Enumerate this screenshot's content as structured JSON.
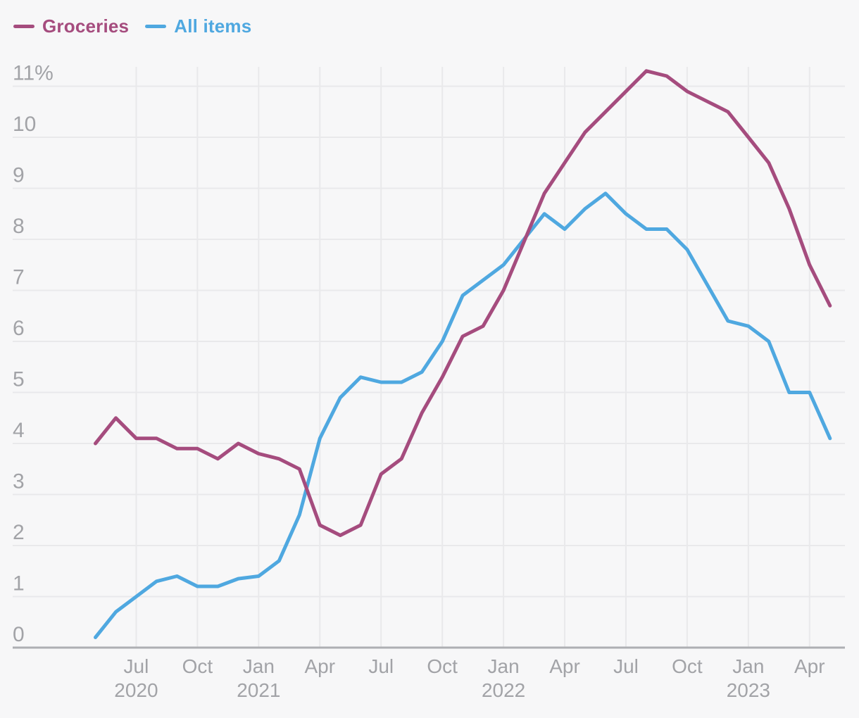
{
  "legend": {
    "items": [
      {
        "label": "Groceries"
      },
      {
        "label": "All items"
      }
    ]
  },
  "chart_data": {
    "type": "line",
    "title": "",
    "xlabel": "",
    "ylabel": "",
    "ylim": [
      0,
      11
    ],
    "grid": true,
    "legend_position": "top-left",
    "x": [
      "May 2020",
      "Jun 2020",
      "Jul 2020",
      "Aug 2020",
      "Sep 2020",
      "Oct 2020",
      "Nov 2020",
      "Dec 2020",
      "Jan 2021",
      "Feb 2021",
      "Mar 2021",
      "Apr 2021",
      "May 2021",
      "Jun 2021",
      "Jul 2021",
      "Aug 2021",
      "Sep 2021",
      "Oct 2021",
      "Nov 2021",
      "Dec 2021",
      "Jan 2022",
      "Feb 2022",
      "Mar 2022",
      "Apr 2022",
      "May 2022",
      "Jun 2022",
      "Jul 2022",
      "Aug 2022",
      "Sep 2022",
      "Oct 2022",
      "Nov 2022",
      "Dec 2022",
      "Jan 2023",
      "Feb 2023",
      "Mar 2023",
      "Apr 2023",
      "May 2023"
    ],
    "series": [
      {
        "name": "Groceries",
        "color": "#A54C7E",
        "values": [
          4.0,
          4.5,
          4.1,
          4.1,
          3.9,
          3.9,
          3.7,
          4.0,
          3.8,
          3.7,
          3.5,
          2.4,
          2.2,
          2.4,
          3.4,
          3.7,
          4.6,
          5.3,
          6.1,
          6.3,
          7.0,
          7.95,
          8.9,
          9.5,
          10.1,
          10.5,
          10.9,
          11.3,
          11.2,
          10.9,
          10.7,
          10.5,
          10.0,
          9.5,
          8.6,
          7.5,
          6.7
        ]
      },
      {
        "name": "All items",
        "color": "#4FA8E0",
        "values": [
          0.2,
          0.7,
          1.0,
          1.3,
          1.4,
          1.2,
          1.2,
          1.35,
          1.4,
          1.7,
          2.6,
          4.1,
          4.9,
          5.3,
          5.2,
          5.2,
          5.4,
          6.0,
          6.9,
          7.2,
          7.5,
          8.0,
          8.5,
          8.2,
          8.6,
          8.9,
          8.5,
          8.2,
          8.2,
          7.8,
          7.1,
          6.4,
          6.3,
          6.0,
          5.0,
          5.0,
          4.1
        ]
      }
    ],
    "y_ticks": [
      {
        "value": 0,
        "label": "0"
      },
      {
        "value": 1,
        "label": "1"
      },
      {
        "value": 2,
        "label": "2"
      },
      {
        "value": 3,
        "label": "3"
      },
      {
        "value": 4,
        "label": "4"
      },
      {
        "value": 5,
        "label": "5"
      },
      {
        "value": 6,
        "label": "6"
      },
      {
        "value": 7,
        "label": "7"
      },
      {
        "value": 8,
        "label": "8"
      },
      {
        "value": 9,
        "label": "9"
      },
      {
        "value": 10,
        "label": "10"
      },
      {
        "value": 11,
        "label": "11%"
      }
    ],
    "x_ticks": [
      {
        "index": 2,
        "label": "Jul",
        "year": "2020"
      },
      {
        "index": 5,
        "label": "Oct",
        "year": ""
      },
      {
        "index": 8,
        "label": "Jan",
        "year": "2021"
      },
      {
        "index": 11,
        "label": "Apr",
        "year": ""
      },
      {
        "index": 14,
        "label": "Jul",
        "year": ""
      },
      {
        "index": 17,
        "label": "Oct",
        "year": ""
      },
      {
        "index": 20,
        "label": "Jan",
        "year": "2022"
      },
      {
        "index": 23,
        "label": "Apr",
        "year": ""
      },
      {
        "index": 26,
        "label": "Jul",
        "year": ""
      },
      {
        "index": 29,
        "label": "Oct",
        "year": ""
      },
      {
        "index": 32,
        "label": "Jan",
        "year": "2023"
      },
      {
        "index": 35,
        "label": "Apr",
        "year": ""
      }
    ]
  },
  "colors": {
    "background": "#F7F7F8",
    "gridline": "#E9E9EB",
    "baseline": "#AEAFB3",
    "tick_text": "#A2A3A7"
  }
}
